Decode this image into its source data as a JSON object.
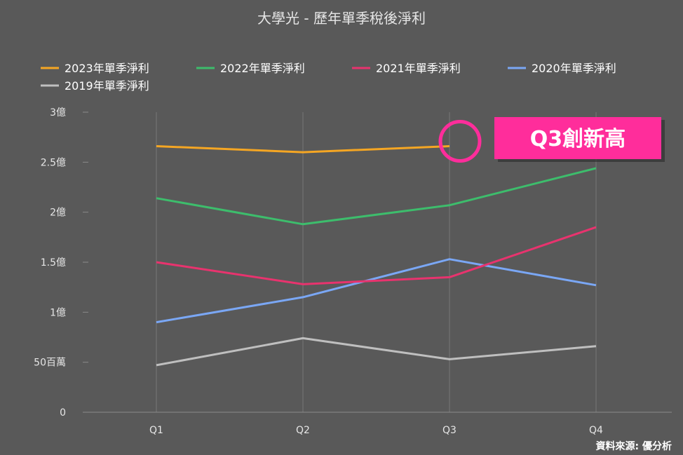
{
  "chart_data": {
    "type": "line",
    "title": "大學光 - 歷年單季稅後淨利",
    "categories": [
      "Q1",
      "Q2",
      "Q3",
      "Q4"
    ],
    "ylim": [
      0,
      300000000
    ],
    "yticks": [
      {
        "value": 0,
        "label": "0"
      },
      {
        "value": 50000000,
        "label": "50百萬"
      },
      {
        "value": 100000000,
        "label": "1億"
      },
      {
        "value": 150000000,
        "label": "1.5億"
      },
      {
        "value": 200000000,
        "label": "2億"
      },
      {
        "value": 250000000,
        "label": "2.5億"
      },
      {
        "value": 300000000,
        "label": "3億"
      }
    ],
    "grid": "vertical",
    "legend_position": "top",
    "series": [
      {
        "name": "2023年單季淨利",
        "color": "#f5a623",
        "values": [
          266000000,
          260000000,
          266000000,
          null
        ]
      },
      {
        "name": "2022年單季淨利",
        "color": "#3dbd6c",
        "values": [
          214000000,
          188000000,
          207000000,
          244000000
        ]
      },
      {
        "name": "2021年單季淨利",
        "color": "#e8336e",
        "values": [
          150000000,
          128000000,
          135000000,
          185000000
        ]
      },
      {
        "name": "2020年單季淨利",
        "color": "#7aa7f5",
        "values": [
          90000000,
          115000000,
          153000000,
          127000000
        ]
      },
      {
        "name": "2019年單季淨利",
        "color": "#bfbfbf",
        "values": [
          47000000,
          74000000,
          53000000,
          66000000
        ]
      }
    ],
    "annotation": {
      "text": "Q3創新高",
      "color": "#ff2d9b",
      "category": "Q3"
    }
  },
  "source": "資料來源: 優分析"
}
